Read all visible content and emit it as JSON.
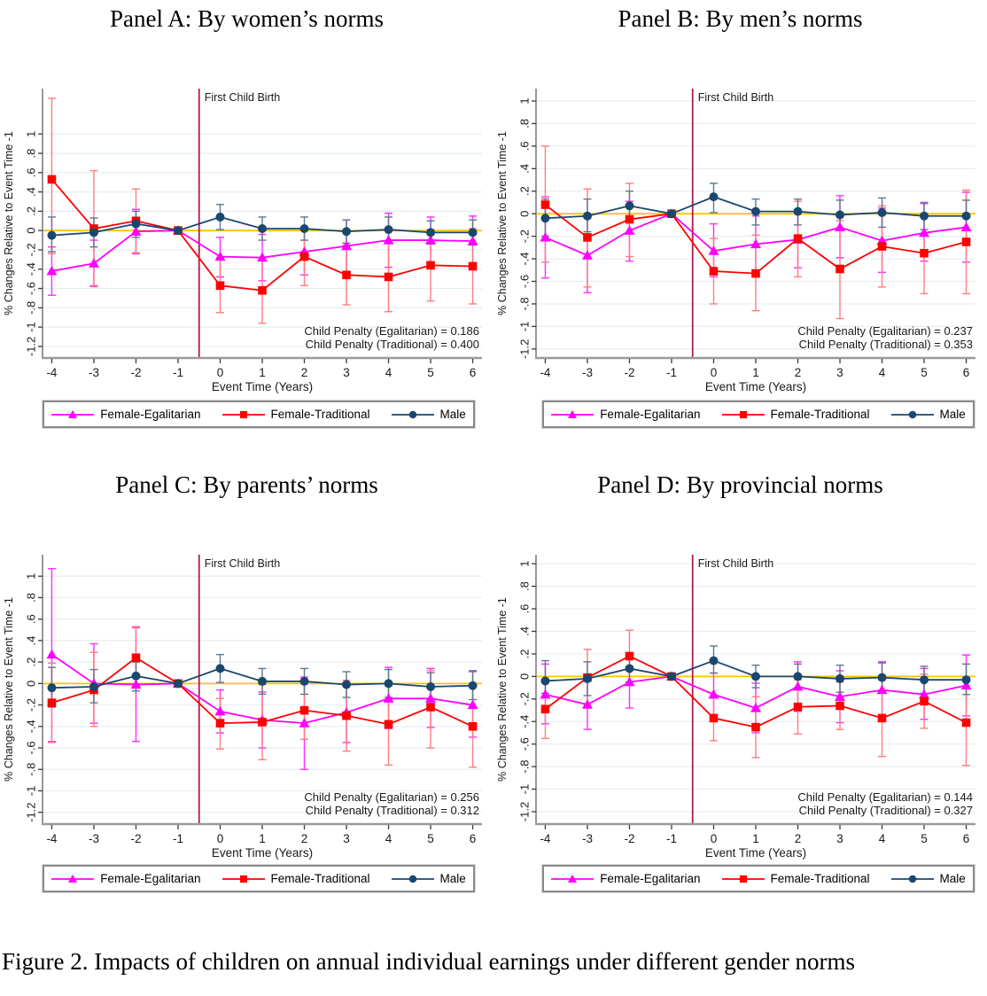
{
  "figure": {
    "caption": "Figure 2. Impacts of children on annual individual earnings under different gender norms"
  },
  "shared": {
    "ylabel": "% Changes Relative to Event Time -1",
    "xlabel": "Event Time (Years)",
    "event_line_label": "First Child Birth",
    "yticks": {
      "values": [
        1,
        0.8,
        0.6,
        0.4,
        0.2,
        0,
        -0.2,
        -0.4,
        -0.6,
        -0.8,
        -1,
        -1.2
      ],
      "labels": [
        "1",
        ".8",
        ".6",
        ".4",
        ".2",
        "0",
        "-.2",
        "-.4",
        "-.6",
        "-.8",
        "-1",
        "-1.2"
      ]
    },
    "xticks": [
      -4,
      -3,
      -2,
      -1,
      0,
      1,
      2,
      3,
      4,
      5,
      6
    ],
    "colors": {
      "egalitarian": "#ff00ff",
      "egalitarian_ci": "#ff2bff",
      "traditional": "#fe0000",
      "traditional_ci": "#ff7d7d",
      "male": "#1a476f",
      "male_ci": "#5d7891",
      "zero_line": "#ffc400",
      "event_line": "#b01a4a",
      "grid": "#e4eef4",
      "axis_left": "#616161",
      "axis_bottom": "#9a9a9a",
      "tick": "#3a3a3a",
      "text": "#1a1a1a"
    },
    "legend": [
      {
        "name": "Female-Egalitarian",
        "marker": "triangle",
        "color": "#ff00ff",
        "ci_color": "#ff2bff"
      },
      {
        "name": "Female-Traditional",
        "marker": "square",
        "color": "#fe0000",
        "ci_color": "#ff7d7d"
      },
      {
        "name": "Male",
        "marker": "circle",
        "color": "#1a476f",
        "ci_color": "#5d7891"
      }
    ]
  },
  "chart_data": [
    {
      "type": "line",
      "panel": "Panel A: By women’s norms",
      "x": [
        -4,
        -3,
        -2,
        -1,
        0,
        1,
        2,
        3,
        4,
        5,
        6
      ],
      "ylim": [
        -1.32,
        1.47
      ],
      "vline_x": -0.5,
      "annotations": [
        "Child Penalty (Egalitarian) = 0.186",
        "Child Penalty (Traditional) = 0.400"
      ],
      "series": [
        {
          "name": "Female-Egalitarian",
          "values": [
            -0.42,
            -0.34,
            -0.01,
            0,
            -0.27,
            -0.28,
            -0.22,
            -0.16,
            -0.1,
            -0.1,
            -0.11
          ],
          "ci_low": [
            -0.67,
            -0.58,
            -0.24,
            0,
            -0.48,
            -0.52,
            -0.46,
            -0.43,
            -0.38,
            -0.34,
            -0.37
          ],
          "ci_high": [
            -0.17,
            -0.1,
            0.22,
            0,
            -0.07,
            -0.04,
            0.02,
            0.11,
            0.18,
            0.14,
            0.15
          ]
        },
        {
          "name": "Female-Traditional",
          "values": [
            0.53,
            0.02,
            0.1,
            0,
            -0.57,
            -0.62,
            -0.27,
            -0.46,
            -0.48,
            -0.36,
            -0.37
          ],
          "ci_low": [
            -0.24,
            -0.57,
            -0.23,
            0,
            -0.85,
            -0.96,
            -0.57,
            -0.77,
            -0.84,
            -0.73,
            -0.76
          ],
          "ci_high": [
            1.37,
            0.62,
            0.43,
            0,
            -0.28,
            -0.28,
            0.03,
            -0.15,
            -0.12,
            0.01,
            0.02
          ]
        },
        {
          "name": "Male",
          "values": [
            -0.05,
            -0.02,
            0.07,
            0,
            0.14,
            0.02,
            0.02,
            -0.01,
            0.01,
            -0.02,
            -0.02
          ],
          "ci_low": [
            -0.22,
            -0.17,
            -0.07,
            0,
            0.01,
            -0.1,
            -0.1,
            -0.13,
            -0.12,
            -0.14,
            -0.15
          ],
          "ci_high": [
            0.14,
            0.13,
            0.2,
            0,
            0.27,
            0.14,
            0.14,
            0.11,
            0.14,
            0.1,
            0.11
          ]
        }
      ]
    },
    {
      "type": "line",
      "panel": "Panel B: By men’s norms",
      "x": [
        -4,
        -3,
        -2,
        -1,
        0,
        1,
        2,
        3,
        4,
        5,
        6
      ],
      "ylim": [
        -1.28,
        1.11
      ],
      "vline_x": -0.5,
      "annotations": [
        "Child Penalty (Egalitarian) = 0.237",
        "Child Penalty (Traditional) = 0.353"
      ],
      "series": [
        {
          "name": "Female-Egalitarian",
          "values": [
            -0.21,
            -0.37,
            -0.15,
            0,
            -0.33,
            -0.27,
            -0.23,
            -0.12,
            -0.24,
            -0.17,
            -0.12
          ],
          "ci_low": [
            -0.57,
            -0.7,
            -0.42,
            0,
            -0.56,
            -0.52,
            -0.48,
            -0.39,
            -0.52,
            -0.42,
            -0.43
          ],
          "ci_high": [
            0.15,
            -0.04,
            0.11,
            0,
            -0.09,
            -0.02,
            0.03,
            0.16,
            0.05,
            0.09,
            0.19
          ]
        },
        {
          "name": "Female-Traditional",
          "values": [
            0.08,
            -0.21,
            -0.05,
            0,
            -0.51,
            -0.53,
            -0.22,
            -0.49,
            -0.29,
            -0.35,
            -0.25
          ],
          "ci_low": [
            -0.43,
            -0.65,
            -0.38,
            0,
            -0.8,
            -0.86,
            -0.56,
            -0.93,
            -0.65,
            -0.71,
            -0.71
          ],
          "ci_high": [
            0.6,
            0.22,
            0.27,
            0,
            -0.22,
            -0.19,
            0.11,
            -0.06,
            0.07,
            0.0,
            0.21
          ]
        },
        {
          "name": "Male",
          "values": [
            -0.04,
            -0.02,
            0.07,
            0,
            0.15,
            0.02,
            0.02,
            -0.01,
            0.01,
            -0.02,
            -0.02
          ],
          "ci_low": [
            -0.2,
            -0.16,
            -0.07,
            0,
            0.01,
            -0.1,
            -0.1,
            -0.14,
            -0.12,
            -0.14,
            -0.15
          ],
          "ci_high": [
            0.13,
            0.13,
            0.2,
            0,
            0.27,
            0.13,
            0.13,
            0.12,
            0.14,
            0.1,
            0.12
          ]
        }
      ]
    },
    {
      "type": "line",
      "panel": "Panel C: By parents’ norms",
      "x": [
        -4,
        -3,
        -2,
        -1,
        0,
        1,
        2,
        3,
        4,
        5,
        6
      ],
      "ylim": [
        -1.31,
        1.2
      ],
      "vline_x": -0.5,
      "annotations": [
        "Child Penalty (Egalitarian) = 0.256",
        "Child Penalty (Traditional) = 0.312"
      ],
      "series": [
        {
          "name": "Female-Egalitarian",
          "values": [
            0.27,
            0.0,
            -0.01,
            0,
            -0.26,
            -0.34,
            -0.37,
            -0.27,
            -0.14,
            -0.14,
            -0.2
          ],
          "ci_low": [
            -0.54,
            -0.37,
            -0.54,
            0,
            -0.46,
            -0.6,
            -0.8,
            -0.55,
            -0.42,
            -0.41,
            -0.5
          ],
          "ci_high": [
            1.07,
            0.37,
            0.52,
            0,
            -0.06,
            -0.08,
            0.06,
            0.01,
            0.15,
            0.14,
            0.11
          ]
        },
        {
          "name": "Female-Traditional",
          "values": [
            -0.18,
            -0.06,
            0.24,
            0,
            -0.37,
            -0.36,
            -0.25,
            -0.3,
            -0.38,
            -0.22,
            -0.4
          ],
          "ci_low": [
            -0.55,
            -0.4,
            -0.04,
            0,
            -0.61,
            -0.71,
            -0.52,
            -0.63,
            -0.76,
            -0.6,
            -0.78
          ],
          "ci_high": [
            0.19,
            0.29,
            0.53,
            0,
            -0.14,
            -0.01,
            0.02,
            0.03,
            0.0,
            0.12,
            -0.02
          ]
        },
        {
          "name": "Male",
          "values": [
            -0.04,
            -0.03,
            0.07,
            0,
            0.14,
            0.02,
            0.02,
            -0.01,
            0.0,
            -0.03,
            -0.02
          ],
          "ci_low": [
            -0.22,
            -0.18,
            -0.07,
            0,
            0.01,
            -0.1,
            -0.1,
            -0.13,
            -0.13,
            -0.15,
            -0.15
          ],
          "ci_high": [
            0.15,
            0.13,
            0.2,
            0,
            0.27,
            0.14,
            0.14,
            0.11,
            0.13,
            0.1,
            0.12
          ]
        }
      ]
    },
    {
      "type": "line",
      "panel": "Panel D: By provincial norms",
      "x": [
        -4,
        -3,
        -2,
        -1,
        0,
        1,
        2,
        3,
        4,
        5,
        6
      ],
      "ylim": [
        -1.31,
        1.08
      ],
      "vline_x": -0.5,
      "annotations": [
        "Child Penalty (Egalitarian) = 0.144",
        "Child Penalty (Traditional) = 0.327"
      ],
      "series": [
        {
          "name": "Female-Egalitarian",
          "values": [
            -0.16,
            -0.25,
            -0.05,
            0,
            -0.16,
            -0.28,
            -0.09,
            -0.18,
            -0.12,
            -0.16,
            -0.08
          ],
          "ci_low": [
            -0.42,
            -0.47,
            -0.28,
            0,
            -0.35,
            -0.5,
            -0.31,
            -0.41,
            -0.36,
            -0.38,
            -0.35
          ],
          "ci_high": [
            0.11,
            -0.03,
            0.18,
            0,
            0.03,
            -0.06,
            0.13,
            0.05,
            0.13,
            0.07,
            0.19
          ]
        },
        {
          "name": "Female-Traditional",
          "values": [
            -0.29,
            -0.01,
            0.18,
            0,
            -0.37,
            -0.45,
            -0.27,
            -0.26,
            -0.37,
            -0.22,
            -0.41
          ],
          "ci_low": [
            -0.55,
            -0.25,
            -0.05,
            0,
            -0.57,
            -0.72,
            -0.51,
            -0.47,
            -0.71,
            -0.46,
            -0.79
          ],
          "ci_high": [
            -0.03,
            0.24,
            0.41,
            0,
            -0.17,
            -0.18,
            -0.03,
            -0.05,
            -0.03,
            0.02,
            -0.03
          ]
        },
        {
          "name": "Male",
          "values": [
            -0.04,
            -0.02,
            0.07,
            0,
            0.14,
            0.0,
            0.0,
            -0.02,
            -0.01,
            -0.03,
            -0.03
          ],
          "ci_low": [
            -0.15,
            -0.17,
            -0.05,
            0,
            0.03,
            -0.1,
            -0.1,
            -0.14,
            -0.13,
            -0.15,
            -0.16
          ],
          "ci_high": [
            0.14,
            0.13,
            0.18,
            0,
            0.27,
            0.1,
            0.11,
            0.1,
            0.12,
            0.09,
            0.11
          ]
        }
      ]
    }
  ]
}
